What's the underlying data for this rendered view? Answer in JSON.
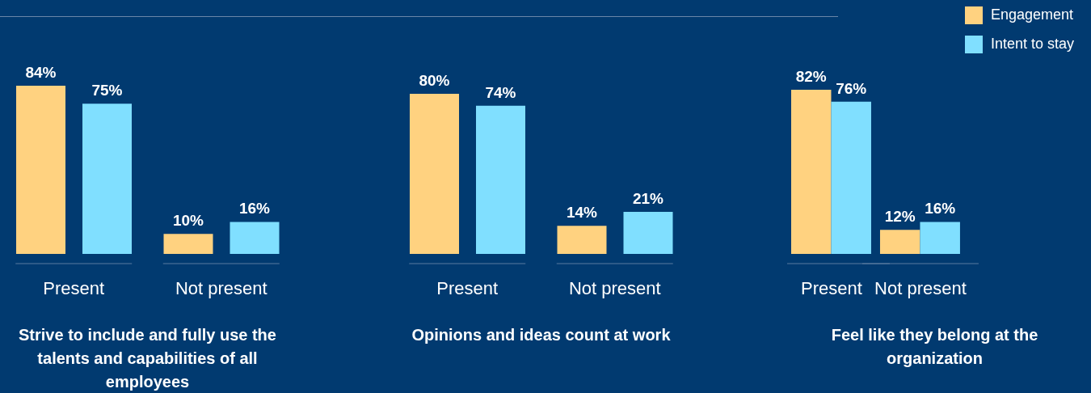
{
  "chart_data": [
    {
      "type": "bar",
      "xlabel": "Strive to include and fully use the talents and capabilities of all employees",
      "categories": [
        "Present",
        "Not present"
      ],
      "legend": false,
      "series": [
        {
          "color": "#ffd280",
          "values": [
            84,
            10
          ],
          "value_labels": [
            "84%",
            "10%"
          ]
        },
        {
          "color": "#80dfff",
          "values": [
            75,
            16
          ],
          "value_labels": [
            "75%",
            "16%"
          ]
        }
      ]
    },
    {
      "type": "bar",
      "xlabel": "Opinions and ideas count at work",
      "categories": [
        "Present",
        "Not present"
      ],
      "legend": false,
      "series": [
        {
          "color": "#ffd280",
          "values": [
            80,
            14
          ],
          "value_labels": [
            "80%",
            "14%"
          ]
        },
        {
          "color": "#80dfff",
          "values": [
            74,
            21
          ],
          "value_labels": [
            "74%",
            "21%"
          ]
        }
      ]
    },
    {
      "type": "bar",
      "xlabel": "Feel like they belong at the organization",
      "categories": [
        "Present",
        "Not present"
      ],
      "legend": "top right",
      "series": [
        {
          "name": "Engagement",
          "color": "#ffd280",
          "values": [
            82,
            12
          ],
          "value_labels": [
            "82%",
            "12%"
          ]
        },
        {
          "name": "Intent to stay",
          "color": "#80dfff",
          "values": [
            76,
            16
          ],
          "value_labels": [
            "76%",
            "16%"
          ]
        }
      ]
    }
  ]
}
